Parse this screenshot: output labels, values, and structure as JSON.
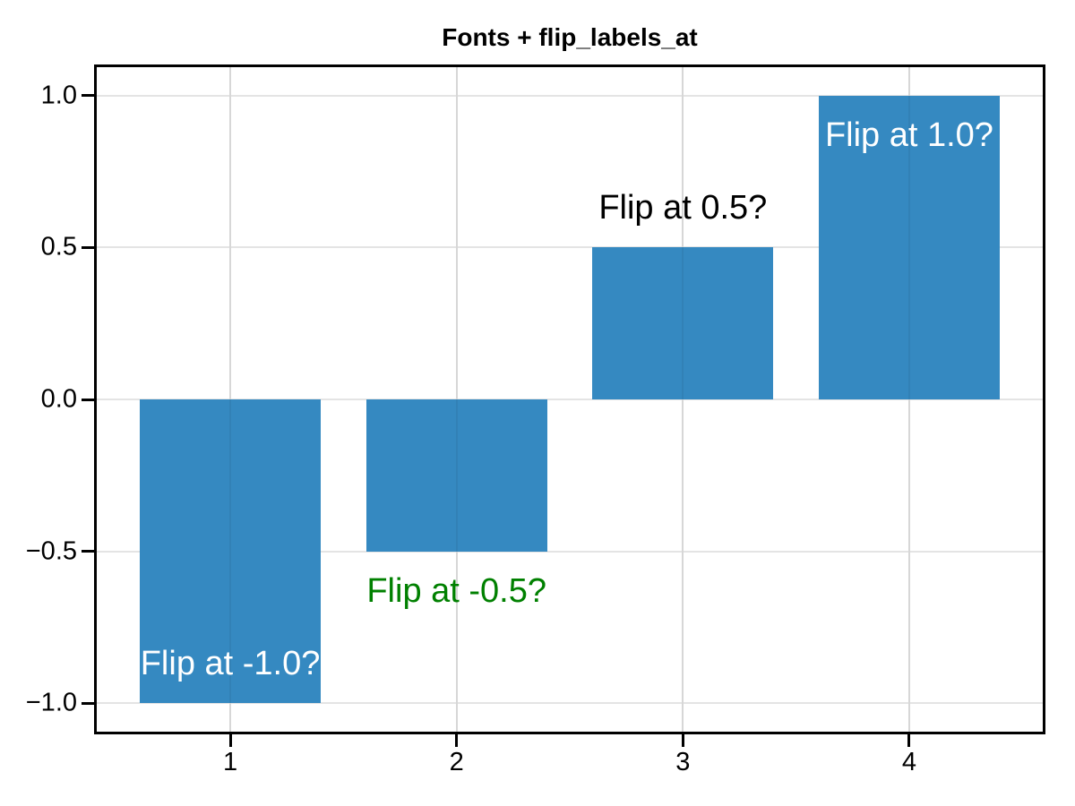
{
  "figure": {
    "background": "#ffffff"
  },
  "chart_data": {
    "type": "bar",
    "title": "Fonts + flip_labels_at",
    "xlabel": "",
    "ylabel": "",
    "x": [
      1,
      2,
      3,
      4
    ],
    "values": [
      -1.0,
      -0.5,
      0.5,
      1.0
    ],
    "bar_color": "#3589c1",
    "bar_width": 0.8,
    "labels": [
      {
        "x": 1,
        "value": -1.0,
        "text": "Flip at -1.0?",
        "color": "#ffffff",
        "placement": "inside"
      },
      {
        "x": 2,
        "value": -0.5,
        "text": "Flip at -0.5?",
        "color": "#008000",
        "placement": "outside"
      },
      {
        "x": 3,
        "value": 0.5,
        "text": "Flip at 0.5?",
        "color": "#000000",
        "placement": "outside"
      },
      {
        "x": 4,
        "value": 1.0,
        "text": "Flip at 1.0?",
        "color": "#ffffff",
        "placement": "inside"
      }
    ],
    "xticks": [
      1,
      2,
      3,
      4
    ],
    "xtick_labels": [
      "1",
      "2",
      "3",
      "4"
    ],
    "yticks": [
      1.0,
      0.5,
      0.0,
      -0.5,
      -1.0
    ],
    "ytick_labels": [
      "1.0",
      "0.5",
      "0.0",
      "−0.5",
      "−1.0"
    ],
    "xlim": [
      0.41,
      4.59
    ],
    "ylim": [
      -1.094,
      1.094
    ],
    "grid": true,
    "grid_color": "#e4e4e4",
    "axis_color": "#000000",
    "legend_position": "none"
  }
}
